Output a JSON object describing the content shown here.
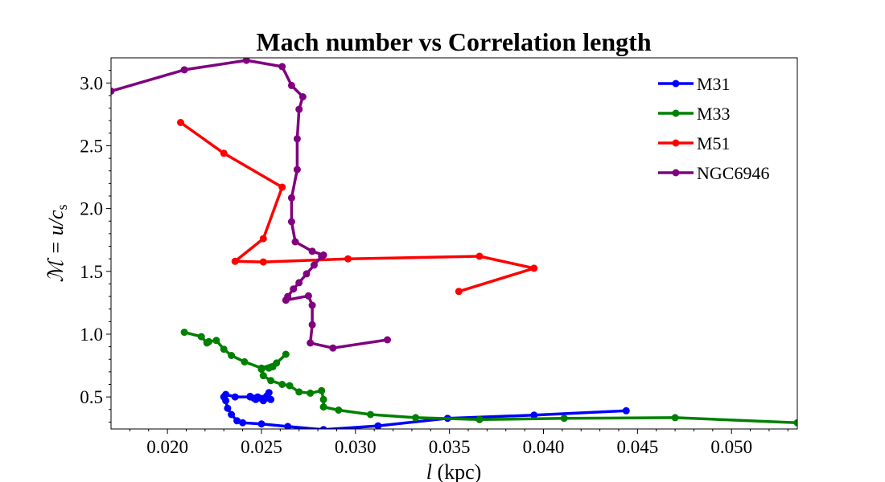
{
  "chart_data": {
    "type": "line",
    "title": "Mach number vs Correlation length",
    "xlabel_italic": "l",
    "xlabel_rest": " (kpc)",
    "ylabel_italic": "ℳ = u/c",
    "ylabel_sub": "s",
    "xlim": [
      0.017,
      0.0535
    ],
    "ylim": [
      0.245,
      3.2
    ],
    "xticks": [
      0.02,
      0.025,
      0.03,
      0.035,
      0.04,
      0.045,
      0.05
    ],
    "xtick_labels": [
      "0.020",
      "0.025",
      "0.030",
      "0.035",
      "0.040",
      "0.045",
      "0.050"
    ],
    "yticks": [
      0.5,
      1.0,
      1.5,
      2.0,
      2.5,
      3.0
    ],
    "ytick_labels": [
      "0.5",
      "1.0",
      "1.5",
      "2.0",
      "2.5",
      "3.0"
    ],
    "grid": false,
    "legend_position": "top-right",
    "series": [
      {
        "name": "M31",
        "color": "#0000ff",
        "x": [
          0.0444,
          0.0395,
          0.0349,
          0.0312,
          0.0283,
          0.0264,
          0.025,
          0.024,
          0.0237,
          0.0234,
          0.0232,
          0.0231,
          0.023,
          0.0231,
          0.0236,
          0.0244,
          0.0247,
          0.0251,
          0.0255,
          0.0254,
          0.0253,
          0.0248,
          0.0246,
          0.0244
        ],
        "y": [
          0.39,
          0.355,
          0.33,
          0.27,
          0.24,
          0.265,
          0.285,
          0.295,
          0.31,
          0.36,
          0.41,
          0.47,
          0.5,
          0.52,
          0.5,
          0.5,
          0.48,
          0.47,
          0.48,
          0.535,
          0.51,
          0.5,
          0.49,
          0.505
        ]
      },
      {
        "name": "M33",
        "color": "#008000",
        "x": [
          0.0535,
          0.047,
          0.0411,
          0.0366,
          0.0332,
          0.0308,
          0.0291,
          0.0283,
          0.0283,
          0.0282,
          0.0276,
          0.027,
          0.0265,
          0.0261,
          0.0255,
          0.0251,
          0.025,
          0.0254,
          0.0256,
          0.0263,
          0.0258,
          0.025,
          0.0241,
          0.0234,
          0.023,
          0.0226,
          0.0222,
          0.0221,
          0.0218,
          0.0209
        ],
        "y": [
          0.295,
          0.335,
          0.33,
          0.32,
          0.335,
          0.36,
          0.395,
          0.42,
          0.48,
          0.55,
          0.53,
          0.54,
          0.59,
          0.6,
          0.63,
          0.67,
          0.72,
          0.73,
          0.74,
          0.84,
          0.77,
          0.73,
          0.78,
          0.83,
          0.88,
          0.95,
          0.94,
          0.93,
          0.98,
          1.015
        ]
      },
      {
        "name": "M51",
        "color": "#ff0000",
        "x": [
          0.0355,
          0.0395,
          0.0366,
          0.0296,
          0.0251,
          0.0236,
          0.0251,
          0.0261,
          0.023,
          0.0207
        ],
        "y": [
          1.34,
          1.525,
          1.62,
          1.6,
          1.575,
          1.58,
          1.76,
          2.17,
          2.44,
          2.685
        ]
      },
      {
        "name": "NGC6946",
        "color": "#800080",
        "x": [
          0.0317,
          0.0288,
          0.0276,
          0.0277,
          0.0277,
          0.0275,
          0.0263,
          0.0264,
          0.0267,
          0.027,
          0.0274,
          0.0278,
          0.0282,
          0.0283,
          0.0277,
          0.0268,
          0.0266,
          0.0266,
          0.0269,
          0.0269,
          0.027,
          0.0272,
          0.0266,
          0.0261,
          0.0242,
          0.0209,
          0.017
        ],
        "y": [
          0.955,
          0.89,
          0.93,
          1.075,
          1.23,
          1.305,
          1.27,
          1.3,
          1.36,
          1.41,
          1.48,
          1.55,
          1.62,
          1.63,
          1.66,
          1.735,
          1.895,
          2.085,
          2.31,
          2.555,
          2.79,
          2.89,
          2.98,
          3.13,
          3.18,
          3.105,
          2.935
        ]
      }
    ]
  }
}
